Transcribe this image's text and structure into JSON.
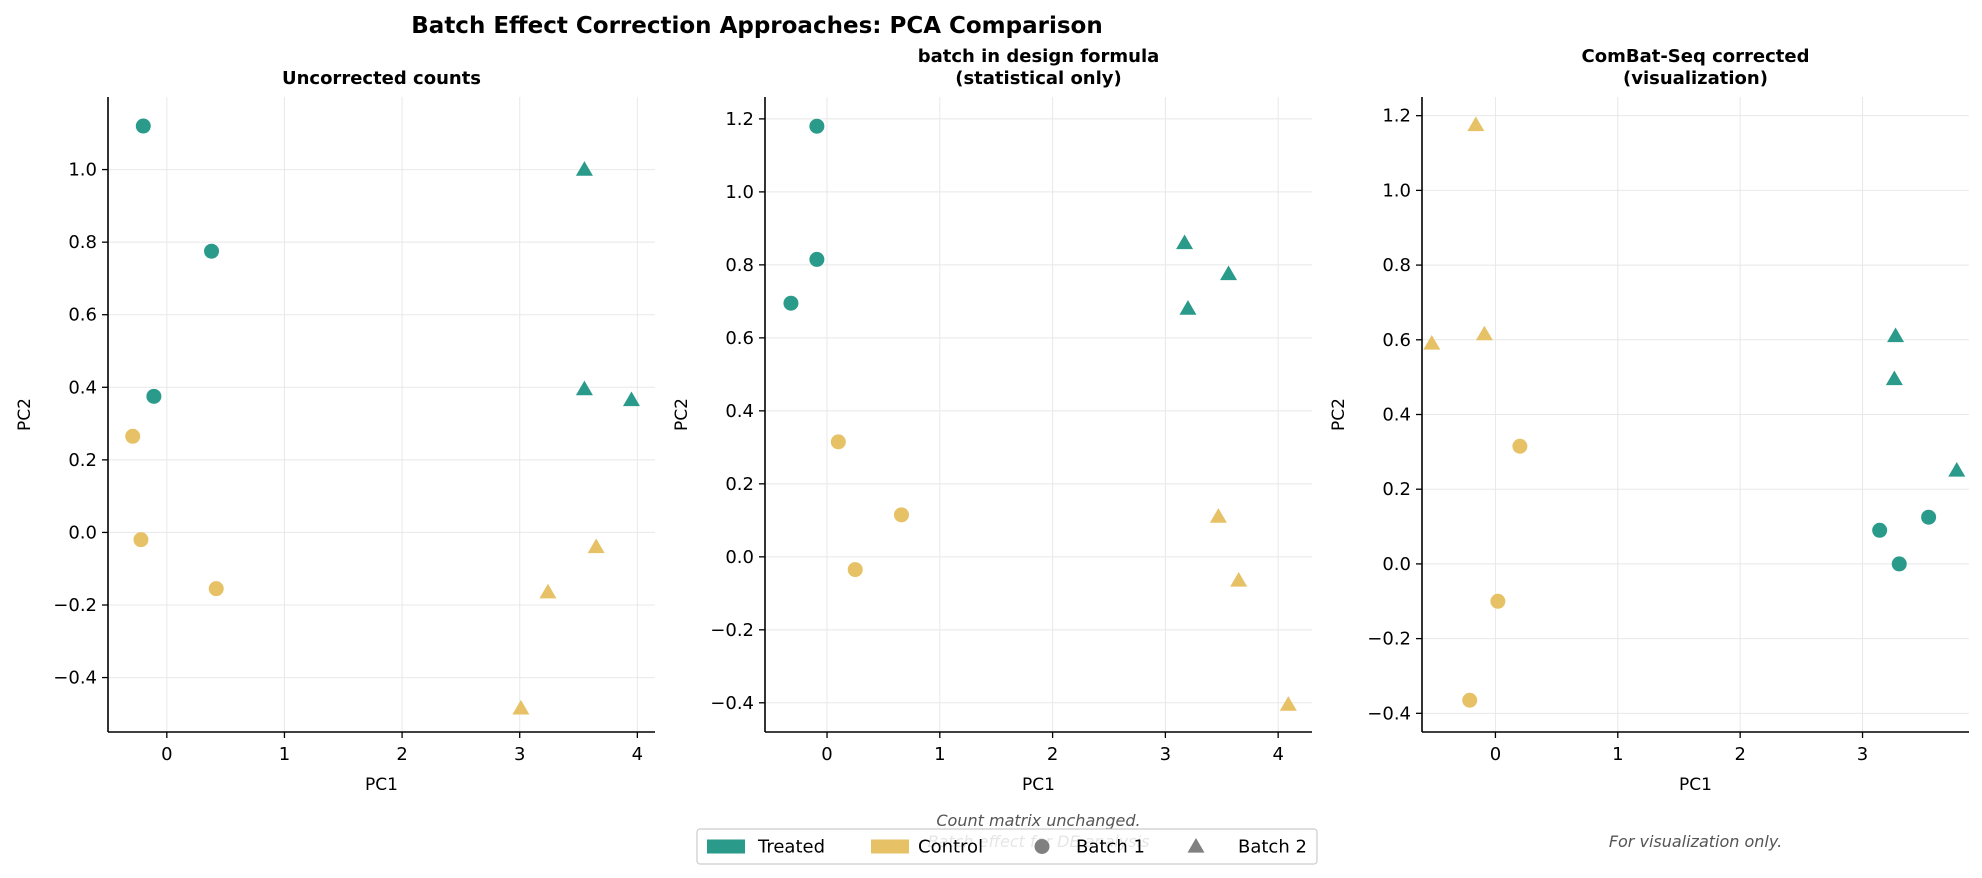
{
  "figure": {
    "title": "Batch Effect Correction Approaches: PCA Comparison"
  },
  "colors": {
    "treated": "#2a9a8b",
    "control": "#e6c166",
    "grid": "#e8e8e8",
    "axis": "#000000",
    "note": "#555555",
    "legend_marker": "#808080"
  },
  "legend": {
    "placement": "bottom-center",
    "items": [
      {
        "label": "Treated",
        "kind": "patch",
        "color": "#2a9a8b"
      },
      {
        "label": "Control",
        "kind": "patch",
        "color": "#e6c166"
      },
      {
        "label": "Batch 1",
        "kind": "circle",
        "color": "#808080"
      },
      {
        "label": "Batch 2",
        "kind": "triangle",
        "color": "#808080"
      }
    ]
  },
  "chart_data": [
    {
      "type": "scatter",
      "title": "Uncorrected counts",
      "xlabel": "PC1",
      "ylabel": "PC2",
      "xlim": [
        -0.5,
        4.15
      ],
      "ylim": [
        -0.55,
        1.2
      ],
      "xticks": [
        0,
        1,
        2,
        3,
        4
      ],
      "yticks": [
        -0.4,
        -0.2,
        0.0,
        0.2,
        0.4,
        0.6,
        0.8,
        1.0
      ],
      "xtick_labels": [
        "0",
        "1",
        "2",
        "3",
        "4"
      ],
      "ytick_labels": [
        "−0.4",
        "−0.2",
        "0.0",
        "0.2",
        "0.4",
        "0.6",
        "0.8",
        "1.0"
      ],
      "grid": true,
      "note": "",
      "points": [
        {
          "x": -0.2,
          "y": 1.12,
          "condition": "Treated",
          "batch": "Batch 1"
        },
        {
          "x": 0.38,
          "y": 0.775,
          "condition": "Treated",
          "batch": "Batch 1"
        },
        {
          "x": -0.11,
          "y": 0.375,
          "condition": "Treated",
          "batch": "Batch 1"
        },
        {
          "x": -0.29,
          "y": 0.265,
          "condition": "Control",
          "batch": "Batch 1"
        },
        {
          "x": -0.22,
          "y": -0.02,
          "condition": "Control",
          "batch": "Batch 1"
        },
        {
          "x": 0.42,
          "y": -0.155,
          "condition": "Control",
          "batch": "Batch 1"
        },
        {
          "x": 3.55,
          "y": 1.0,
          "condition": "Treated",
          "batch": "Batch 2"
        },
        {
          "x": 3.55,
          "y": 0.395,
          "condition": "Treated",
          "batch": "Batch 2"
        },
        {
          "x": 3.95,
          "y": 0.365,
          "condition": "Treated",
          "batch": "Batch 2"
        },
        {
          "x": 3.65,
          "y": -0.04,
          "condition": "Control",
          "batch": "Batch 2"
        },
        {
          "x": 3.24,
          "y": -0.165,
          "condition": "Control",
          "batch": "Batch 2"
        },
        {
          "x": 3.01,
          "y": -0.485,
          "condition": "Control",
          "batch": "Batch 2"
        }
      ]
    },
    {
      "type": "scatter",
      "title": "batch in design formula\n(statistical only)",
      "xlabel": "PC1",
      "ylabel": "PC2",
      "xlim": [
        -0.55,
        4.3
      ],
      "ylim": [
        -0.48,
        1.26
      ],
      "xticks": [
        0,
        1,
        2,
        3,
        4
      ],
      "yticks": [
        -0.4,
        -0.2,
        0.0,
        0.2,
        0.4,
        0.6,
        0.8,
        1.0,
        1.2
      ],
      "xtick_labels": [
        "0",
        "1",
        "2",
        "3",
        "4"
      ],
      "ytick_labels": [
        "−0.4",
        "−0.2",
        "0.0",
        "0.2",
        "0.4",
        "0.6",
        "0.8",
        "1.0",
        "1.2"
      ],
      "grid": true,
      "note": "Count matrix unchanged.\nBatch effect for DE analysis",
      "points": [
        {
          "x": -0.09,
          "y": 1.18,
          "condition": "Treated",
          "batch": "Batch 1"
        },
        {
          "x": -0.09,
          "y": 0.815,
          "condition": "Treated",
          "batch": "Batch 1"
        },
        {
          "x": -0.32,
          "y": 0.695,
          "condition": "Treated",
          "batch": "Batch 1"
        },
        {
          "x": 0.1,
          "y": 0.315,
          "condition": "Control",
          "batch": "Batch 1"
        },
        {
          "x": 0.66,
          "y": 0.115,
          "condition": "Control",
          "batch": "Batch 1"
        },
        {
          "x": 0.25,
          "y": -0.035,
          "condition": "Control",
          "batch": "Batch 1"
        },
        {
          "x": 3.17,
          "y": 0.86,
          "condition": "Treated",
          "batch": "Batch 2"
        },
        {
          "x": 3.56,
          "y": 0.775,
          "condition": "Treated",
          "batch": "Batch 2"
        },
        {
          "x": 3.2,
          "y": 0.68,
          "condition": "Treated",
          "batch": "Batch 2"
        },
        {
          "x": 3.47,
          "y": 0.11,
          "condition": "Control",
          "batch": "Batch 2"
        },
        {
          "x": 3.65,
          "y": -0.065,
          "condition": "Control",
          "batch": "Batch 2"
        },
        {
          "x": 4.09,
          "y": -0.405,
          "condition": "Control",
          "batch": "Batch 2"
        }
      ]
    },
    {
      "type": "scatter",
      "title": "ComBat-Seq corrected\n(visualization)",
      "xlabel": "PC1",
      "ylabel": "PC2",
      "xlim": [
        -0.6,
        3.87
      ],
      "ylim": [
        -0.45,
        1.25
      ],
      "xticks": [
        0,
        1,
        2,
        3
      ],
      "yticks": [
        -0.4,
        -0.2,
        0.0,
        0.2,
        0.4,
        0.6,
        0.8,
        1.0,
        1.2
      ],
      "xtick_labels": [
        "0",
        "1",
        "2",
        "3"
      ],
      "ytick_labels": [
        "−0.4",
        "−0.2",
        "0.0",
        "0.2",
        "0.4",
        "0.6",
        "0.8",
        "1.0",
        "1.2"
      ],
      "grid": true,
      "note": "For visualization only.",
      "points": [
        {
          "x": 0.2,
          "y": 0.315,
          "condition": "Control",
          "batch": "Batch 1"
        },
        {
          "x": 0.02,
          "y": -0.1,
          "condition": "Control",
          "batch": "Batch 1"
        },
        {
          "x": -0.21,
          "y": -0.365,
          "condition": "Control",
          "batch": "Batch 1"
        },
        {
          "x": -0.16,
          "y": 1.175,
          "condition": "Control",
          "batch": "Batch 2"
        },
        {
          "x": -0.52,
          "y": 0.59,
          "condition": "Control",
          "batch": "Batch 2"
        },
        {
          "x": -0.09,
          "y": 0.615,
          "condition": "Control",
          "batch": "Batch 2"
        },
        {
          "x": 3.14,
          "y": 0.09,
          "condition": "Treated",
          "batch": "Batch 1"
        },
        {
          "x": 3.54,
          "y": 0.125,
          "condition": "Treated",
          "batch": "Batch 1"
        },
        {
          "x": 3.3,
          "y": 0.0,
          "condition": "Treated",
          "batch": "Batch 1"
        },
        {
          "x": 3.27,
          "y": 0.61,
          "condition": "Treated",
          "batch": "Batch 2"
        },
        {
          "x": 3.26,
          "y": 0.495,
          "condition": "Treated",
          "batch": "Batch 2"
        },
        {
          "x": 3.77,
          "y": 0.25,
          "condition": "Treated",
          "batch": "Batch 2"
        }
      ]
    }
  ]
}
